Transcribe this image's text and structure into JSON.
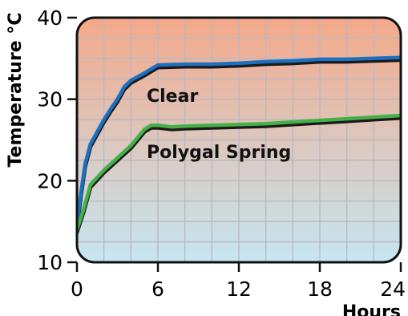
{
  "chart_data": {
    "type": "line",
    "ylabel": "Temperature °C",
    "xlabel": "Hours",
    "xlim": [
      0,
      24
    ],
    "ylim": [
      10,
      40
    ],
    "xticks": [
      "0",
      "6",
      "12",
      "18",
      "24"
    ],
    "yticks": [
      "10",
      "20",
      "30",
      "40"
    ],
    "grid": true,
    "background_gradient": {
      "top": "#f4a889",
      "bottom": "#c6e6f2"
    },
    "series": [
      {
        "name": "Clear",
        "color": "#1f6fc0",
        "x": [
          0,
          0.3,
          0.6,
          1,
          1.5,
          2,
          2.5,
          3,
          3.5,
          4,
          5,
          6,
          8,
          10,
          12,
          14,
          16,
          18,
          20,
          22,
          24
        ],
        "y": [
          14.5,
          18.5,
          22,
          24.5,
          26,
          27.5,
          28.8,
          30,
          31.5,
          32.3,
          33.2,
          34.2,
          34.3,
          34.3,
          34.4,
          34.6,
          34.7,
          34.9,
          34.9,
          35,
          35.1
        ]
      },
      {
        "name": "Polygal Spring",
        "color": "#45b047",
        "x": [
          0,
          0.5,
          1,
          2,
          3,
          4,
          5,
          5.5,
          6,
          7,
          8,
          10,
          12,
          14,
          16,
          18,
          20,
          22,
          24
        ],
        "y": [
          14,
          16.5,
          19.5,
          21.3,
          22.8,
          24.3,
          26.3,
          26.8,
          26.8,
          26.6,
          26.7,
          26.8,
          26.9,
          27,
          27.2,
          27.4,
          27.6,
          27.8,
          28
        ]
      }
    ]
  }
}
